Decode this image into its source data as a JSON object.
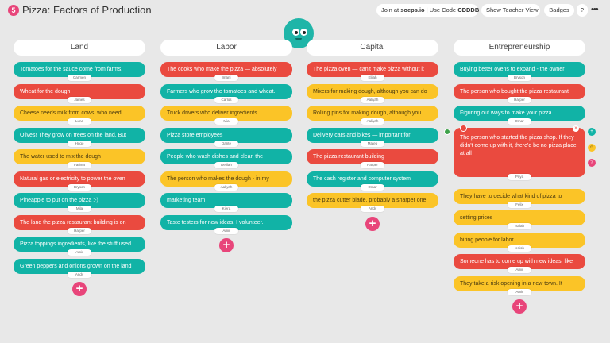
{
  "app": {
    "logo": "5",
    "title": "Pizza: Factors of Production"
  },
  "toolbar": {
    "join_prefix": "Join at ",
    "join_site": "soeps.io",
    "join_mid": " | Use Code ",
    "join_code": "CDDDB",
    "teacher_view": "Show Teacher View",
    "badges": "Badges",
    "help": "?",
    "more": "•••"
  },
  "colors": {
    "teal": "#11b3a6",
    "red": "#ea4a3f",
    "yellow": "#fbc427",
    "pink": "#e8457a"
  },
  "columns": [
    {
      "title": "Land",
      "add_label": "+",
      "cards": [
        {
          "text": "Tomatoes for the sauce come from farms.",
          "author": "Carmen",
          "color": "teal"
        },
        {
          "text": "Wheat for the dough",
          "author": "James",
          "color": "red"
        },
        {
          "text": "Cheese needs milk from cows, who need",
          "author": "Luna",
          "color": "yellow"
        },
        {
          "text": "Olives! They grow on trees on the land. But",
          "author": "Hugo",
          "color": "teal"
        },
        {
          "text": "The water used to mix the dough",
          "author": "Fatima",
          "color": "yellow"
        },
        {
          "text": "Natural gas or electricity to power the oven —",
          "author": "Bryson",
          "color": "red"
        },
        {
          "text": "Pineapple to put on the pizza ;-)",
          "author": "Mila",
          "color": "teal"
        },
        {
          "text": "The land the pizza restaurant building is on",
          "author": "Harper",
          "color": "red"
        },
        {
          "text": "Pizza toppings ingredients, like the stuff used",
          "author": "Amir",
          "color": "teal"
        },
        {
          "text": "Green peppers and onions grown on the land",
          "author": "Andy",
          "color": "teal"
        }
      ]
    },
    {
      "title": "Labor",
      "add_label": "+",
      "cards": [
        {
          "text": "The cooks who make the pizza — absolutely",
          "author": "Imani",
          "color": "red"
        },
        {
          "text": "Farmers who grow the tomatoes and wheat.",
          "author": "Carlos",
          "color": "teal"
        },
        {
          "text": "Truck drivers who deliver ingredients.",
          "author": "Mia",
          "color": "yellow"
        },
        {
          "text": "Pizza store employees",
          "author": "Dante",
          "color": "teal"
        },
        {
          "text": "People who wash dishes and clean the",
          "author": "Delilah",
          "color": "teal"
        },
        {
          "text": "The person who makes the dough - in my",
          "author": "Aaliyah",
          "color": "yellow"
        },
        {
          "text": "marketing team",
          "author": "Kiera",
          "color": "teal"
        },
        {
          "text": "Taste testers for new ideas. I volunteer.",
          "author": "Amir",
          "color": "teal"
        }
      ]
    },
    {
      "title": "Capital",
      "add_label": "+",
      "cards": [
        {
          "text": "The pizza oven — can't make pizza without it",
          "author": "Elijah",
          "color": "red"
        },
        {
          "text": "Mixers for making dough, although you can do",
          "author": "Aaliyah",
          "color": "yellow"
        },
        {
          "text": "Rolling pins for making dough, although you",
          "author": "Aaliyah",
          "color": "yellow"
        },
        {
          "text": "Delivery cars and bikes — important for",
          "author": "Mateo",
          "color": "teal"
        },
        {
          "text": "The pizza restaurant building",
          "author": "Harper",
          "color": "red"
        },
        {
          "text": "The cash register and computer system",
          "author": "Omar",
          "color": "teal"
        },
        {
          "text": "the pizza cutter blade, probably a sharper one",
          "author": "Andy",
          "color": "yellow"
        }
      ]
    },
    {
      "title": "Entrepreneurship",
      "add_label": "+",
      "cards": [
        {
          "text": "Buying better ovens to expand - the owner",
          "author": "Bryson",
          "color": "teal"
        },
        {
          "text": "The person who bought the pizza restaurant",
          "author": "Harper",
          "color": "red"
        },
        {
          "text": "Figuring out ways to make your pizza",
          "author": "Omar",
          "color": "teal"
        },
        {
          "text": "The person who started the pizza shop. If they didn't come up with it, there'd be no pizza place at all",
          "author": "Priya",
          "color": "red",
          "expanded": true
        },
        {
          "text": "They have to decide what kind of pizza to",
          "author": "Felix",
          "color": "yellow"
        },
        {
          "text": "setting prices",
          "author": "Isaiah",
          "color": "yellow"
        },
        {
          "text": "hiring people for labor",
          "author": "Isaiah",
          "color": "yellow"
        },
        {
          "text": "Someone has to come up with new ideas, like",
          "author": "Amir",
          "color": "red"
        },
        {
          "text": "They take a risk opening in a new town. It",
          "author": "Amir",
          "color": "yellow"
        }
      ]
    }
  ],
  "card_actions": {
    "close": "×",
    "plus": "+",
    "happy": "☺",
    "question": "?"
  }
}
